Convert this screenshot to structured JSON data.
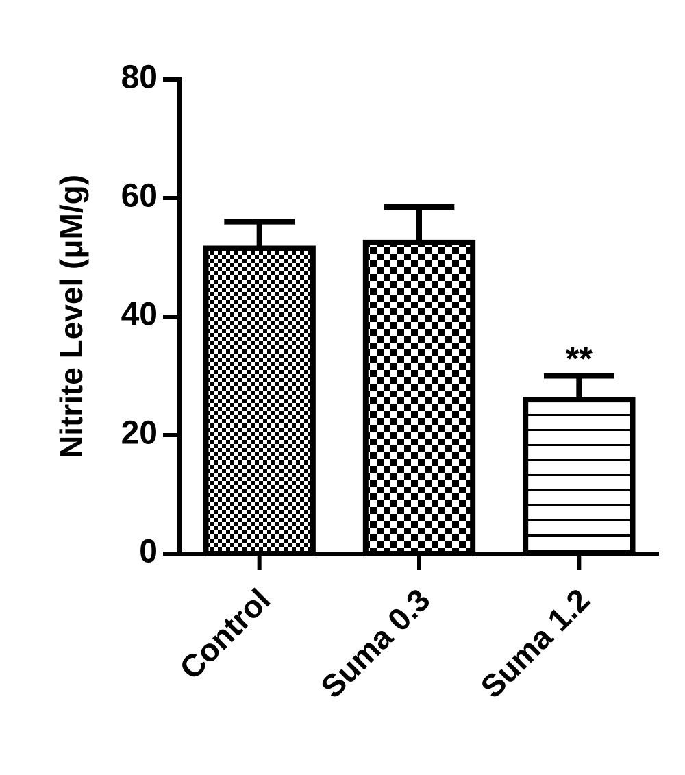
{
  "chart_data": {
    "type": "bar",
    "y_label": "Nitrite Level (μM/g)",
    "categories": [
      "Control",
      "Suma 0.3",
      "Suma 1.2"
    ],
    "values": [
      51.5,
      52.5,
      26
    ],
    "errors": [
      4.5,
      6,
      4
    ],
    "annotations": [
      null,
      null,
      "**"
    ],
    "patterns": [
      "fine-checker",
      "coarse-checker",
      "horizontal-lines"
    ],
    "color": "#000000",
    "ylim": [
      0,
      80
    ],
    "yticks": [
      0,
      20,
      40,
      60,
      80
    ],
    "grid": false
  }
}
